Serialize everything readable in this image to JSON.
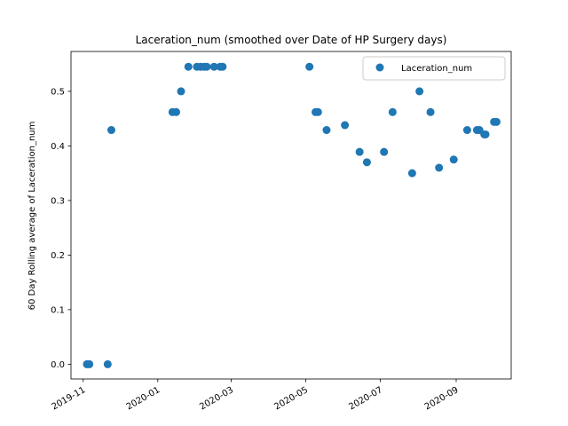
{
  "chart_data": {
    "type": "scatter",
    "title": "Laceration_num (smoothed over Date of HP Surgery days)",
    "xlabel": "",
    "ylabel": "60 Day Rolling average of Laceration_num",
    "x_is_date": true,
    "xlim": [
      "2019-10-22",
      "2020-10-16"
    ],
    "ylim": [
      -0.027,
      0.573
    ],
    "x_ticks": [
      "2019-11",
      "2020-01",
      "2020-03",
      "2020-05",
      "2020-07",
      "2020-09"
    ],
    "x_tick_dates": [
      "2019-11-01",
      "2020-01-01",
      "2020-03-01",
      "2020-05-01",
      "2020-07-01",
      "2020-09-01"
    ],
    "y_ticks": [
      0.0,
      0.1,
      0.2,
      0.3,
      0.4,
      0.5
    ],
    "y_tick_labels": [
      "0.0",
      "0.1",
      "0.2",
      "0.3",
      "0.4",
      "0.5"
    ],
    "grid": false,
    "legend_position": "upper right",
    "series": [
      {
        "name": "Laceration_num",
        "color": "#1f77b4",
        "points": [
          {
            "x": "2019-11-04",
            "y": 0.0
          },
          {
            "x": "2019-11-06",
            "y": 0.0
          },
          {
            "x": "2019-11-21",
            "y": 0.0
          },
          {
            "x": "2019-11-24",
            "y": 0.429
          },
          {
            "x": "2020-01-13",
            "y": 0.462
          },
          {
            "x": "2020-01-16",
            "y": 0.462
          },
          {
            "x": "2020-01-20",
            "y": 0.5
          },
          {
            "x": "2020-01-26",
            "y": 0.545
          },
          {
            "x": "2020-02-02",
            "y": 0.545
          },
          {
            "x": "2020-02-05",
            "y": 0.545
          },
          {
            "x": "2020-02-08",
            "y": 0.545
          },
          {
            "x": "2020-02-10",
            "y": 0.545
          },
          {
            "x": "2020-02-16",
            "y": 0.545
          },
          {
            "x": "2020-02-21",
            "y": 0.545
          },
          {
            "x": "2020-02-23",
            "y": 0.545
          },
          {
            "x": "2020-05-04",
            "y": 0.545
          },
          {
            "x": "2020-05-09",
            "y": 0.462
          },
          {
            "x": "2020-05-11",
            "y": 0.462
          },
          {
            "x": "2020-05-18",
            "y": 0.429
          },
          {
            "x": "2020-06-02",
            "y": 0.438
          },
          {
            "x": "2020-06-14",
            "y": 0.389
          },
          {
            "x": "2020-06-20",
            "y": 0.37
          },
          {
            "x": "2020-07-04",
            "y": 0.389
          },
          {
            "x": "2020-07-11",
            "y": 0.462
          },
          {
            "x": "2020-07-27",
            "y": 0.35
          },
          {
            "x": "2020-08-02",
            "y": 0.5
          },
          {
            "x": "2020-08-11",
            "y": 0.462
          },
          {
            "x": "2020-08-18",
            "y": 0.36
          },
          {
            "x": "2020-08-30",
            "y": 0.375
          },
          {
            "x": "2020-09-10",
            "y": 0.429
          },
          {
            "x": "2020-09-18",
            "y": 0.429
          },
          {
            "x": "2020-09-20",
            "y": 0.429
          },
          {
            "x": "2020-09-24",
            "y": 0.421
          },
          {
            "x": "2020-09-25",
            "y": 0.421
          },
          {
            "x": "2020-10-02",
            "y": 0.444
          },
          {
            "x": "2020-10-04",
            "y": 0.444
          }
        ]
      }
    ]
  }
}
